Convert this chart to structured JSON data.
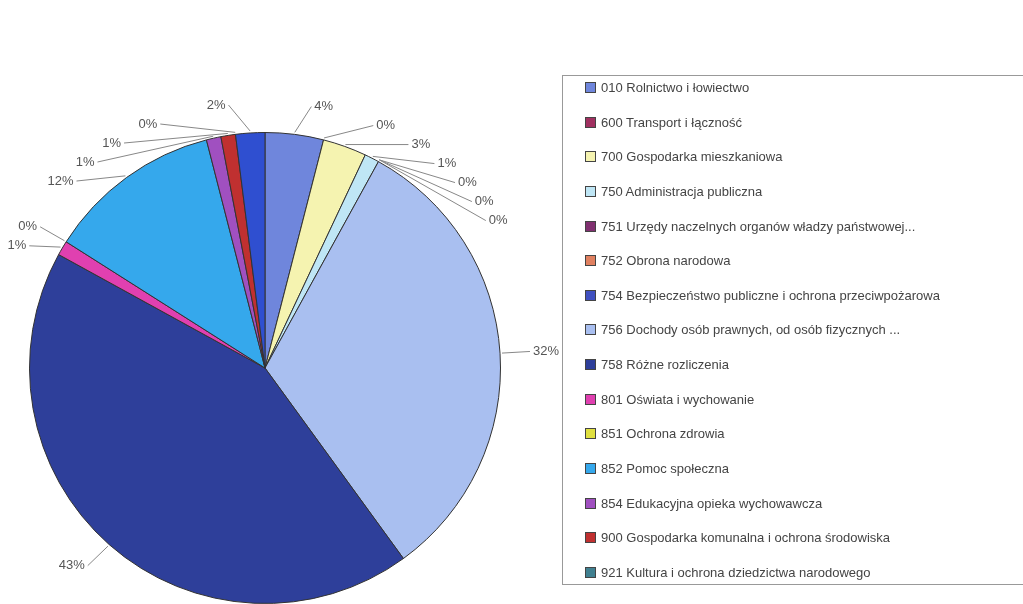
{
  "chart_data": {
    "type": "pie",
    "categories": [
      "010 Rolnictwo i łowiectwo",
      "600 Transport i łączność",
      "700 Gospodarka mieszkaniowa",
      "750 Administracja publiczna",
      "751 Urzędy naczelnych organów władzy państwowej...",
      "752 Obrona narodowa",
      "754 Bezpieczeństwo publiczne i ochrona przeciwpożarowa",
      "756 Dochody osób prawnych, od osób fizycznych ...",
      "758 Różne rozliczenia",
      "801 Oświata i wychowanie",
      "851 Ochrona zdrowia",
      "852 Pomoc społeczna",
      "854 Edukacyjna opieka wychowawcza",
      "900 Gospodarka komunalna i ochrona środowiska",
      "921 Kultura i ochrona dziedzictwa narodowego",
      null
    ],
    "values": [
      4,
      0,
      3,
      1,
      0,
      0,
      0,
      32,
      43,
      1,
      0,
      12,
      1,
      1,
      0,
      2
    ],
    "value_labels": [
      "4%",
      "0%",
      "3%",
      "1%",
      "0%",
      "0%",
      "0%",
      "32%",
      "43%",
      "1%",
      "0%",
      "12%",
      "1%",
      "1%",
      "0%",
      "2%"
    ],
    "colors": [
      "#6f86dc",
      "#a03060",
      "#f5f3b0",
      "#bfe6f5",
      "#803070",
      "#e08060",
      "#4050c0",
      "#a9bff0",
      "#2e3f9a",
      "#e040b0",
      "#e0e040",
      "#35a8ec",
      "#a050c0",
      "#c03030",
      "#408090",
      "#2f4fd0"
    ],
    "legend": "right"
  }
}
